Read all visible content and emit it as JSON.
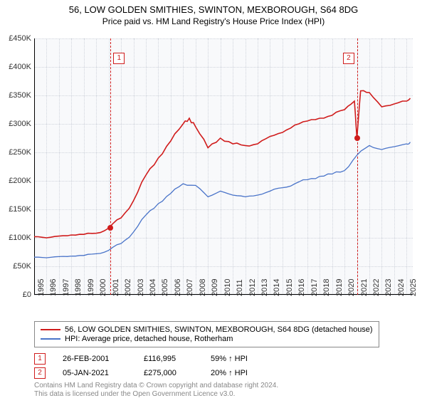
{
  "title": "56, LOW GOLDEN SMITHIES, SWINTON, MEXBOROUGH, S64 8DG",
  "subtitle": "Price paid vs. HM Land Registry's House Price Index (HPI)",
  "chart": {
    "type": "line",
    "background_color": "#f8f9fb",
    "grid_color": "#d0d4dc",
    "ylim": [
      0,
      450000
    ],
    "ytick_step": 50000,
    "ytick_labels": [
      "£0",
      "£50K",
      "£100K",
      "£150K",
      "£200K",
      "£250K",
      "£300K",
      "£350K",
      "£400K",
      "£450K"
    ],
    "x_years": [
      1995,
      1996,
      1997,
      1998,
      1999,
      2000,
      2001,
      2002,
      2003,
      2004,
      2005,
      2006,
      2007,
      2008,
      2009,
      2010,
      2011,
      2012,
      2013,
      2014,
      2015,
      2016,
      2017,
      2018,
      2019,
      2020,
      2021,
      2022,
      2023,
      2024,
      2025
    ],
    "xlim": [
      1995,
      2025.5
    ],
    "series": [
      {
        "name": "56, LOW GOLDEN SMITHIES, SWINTON, MEXBOROUGH, S64 8DG (detached house)",
        "color": "#d01c1c",
        "line_width": 1.6,
        "data": [
          [
            1995,
            102000
          ],
          [
            1996,
            100000
          ],
          [
            1997,
            103000
          ],
          [
            1998,
            105000
          ],
          [
            1999,
            106000
          ],
          [
            2000,
            108000
          ],
          [
            2001,
            116995
          ],
          [
            2002,
            135000
          ],
          [
            2003,
            165000
          ],
          [
            2004,
            210000
          ],
          [
            2005,
            240000
          ],
          [
            2006,
            270000
          ],
          [
            2007,
            300000
          ],
          [
            2007.5,
            310000
          ],
          [
            2008,
            295000
          ],
          [
            2009,
            258000
          ],
          [
            2010,
            275000
          ],
          [
            2011,
            265000
          ],
          [
            2012,
            262000
          ],
          [
            2013,
            265000
          ],
          [
            2014,
            278000
          ],
          [
            2015,
            285000
          ],
          [
            2016,
            298000
          ],
          [
            2017,
            305000
          ],
          [
            2018,
            310000
          ],
          [
            2019,
            315000
          ],
          [
            2020,
            325000
          ],
          [
            2020.8,
            340000
          ],
          [
            2021,
            275000
          ],
          [
            2021.3,
            358000
          ],
          [
            2022,
            355000
          ],
          [
            2023,
            330000
          ],
          [
            2024,
            335000
          ],
          [
            2025,
            340000
          ],
          [
            2025.3,
            345000
          ]
        ]
      },
      {
        "name": "HPI: Average price, detached house, Rotherham",
        "color": "#4a74c9",
        "line_width": 1.3,
        "data": [
          [
            1995,
            66000
          ],
          [
            1996,
            65000
          ],
          [
            1997,
            67000
          ],
          [
            1998,
            68000
          ],
          [
            1999,
            69000
          ],
          [
            2000,
            72000
          ],
          [
            2001,
            78000
          ],
          [
            2002,
            90000
          ],
          [
            2003,
            110000
          ],
          [
            2004,
            140000
          ],
          [
            2005,
            160000
          ],
          [
            2006,
            178000
          ],
          [
            2007,
            195000
          ],
          [
            2008,
            192000
          ],
          [
            2009,
            172000
          ],
          [
            2010,
            182000
          ],
          [
            2011,
            175000
          ],
          [
            2012,
            172000
          ],
          [
            2013,
            175000
          ],
          [
            2014,
            182000
          ],
          [
            2015,
            188000
          ],
          [
            2016,
            195000
          ],
          [
            2017,
            202000
          ],
          [
            2018,
            208000
          ],
          [
            2019,
            212000
          ],
          [
            2020,
            218000
          ],
          [
            2021,
            245000
          ],
          [
            2022,
            262000
          ],
          [
            2023,
            255000
          ],
          [
            2024,
            260000
          ],
          [
            2025,
            265000
          ],
          [
            2025.3,
            268000
          ]
        ]
      }
    ],
    "events": [
      {
        "n": "1",
        "year": 2001.15,
        "color": "#d01c1c",
        "date": "26-FEB-2001",
        "price": "£116,995",
        "pct": "59% ↑ HPI",
        "marker_value": 116995
      },
      {
        "n": "2",
        "year": 2021.02,
        "color": "#d01c1c",
        "date": "05-JAN-2021",
        "price": "£275,000",
        "pct": "20% ↑ HPI",
        "marker_value": 275000
      }
    ],
    "axis_color": "#000000",
    "tick_fontsize": 11
  },
  "legend": {
    "items": [
      {
        "color": "#d01c1c",
        "label": "56, LOW GOLDEN SMITHIES, SWINTON, MEXBOROUGH, S64 8DG (detached house)"
      },
      {
        "color": "#4a74c9",
        "label": "HPI: Average price, detached house, Rotherham"
      }
    ]
  },
  "footer": {
    "line1": "Contains HM Land Registry data © Crown copyright and database right 2024.",
    "line2": "This data is licensed under the Open Government Licence v3.0."
  }
}
